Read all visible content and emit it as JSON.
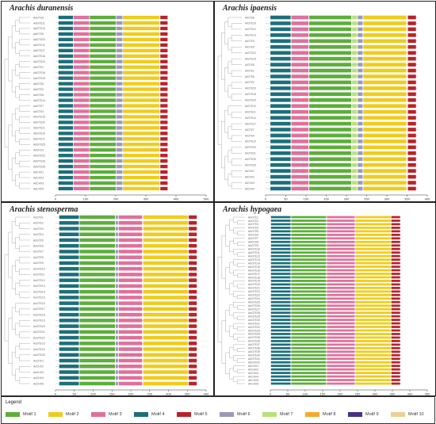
{
  "colors": {
    "motif1": "#5cae3a",
    "motif2": "#f0cc1a",
    "motif3": "#e0709a",
    "motif4": "#1b6f7a",
    "motif5": "#b8232a",
    "motif6": "#9a9ab8",
    "motif7": "#b6e27a",
    "motif8": "#f3aa2e",
    "motif9": "#4a3187",
    "motif10": "#efcf96"
  },
  "panels": [
    {
      "id": "duranensis",
      "title": "Arachis duranensis",
      "axis_ticks": [
        "0",
        "100",
        "200",
        "300",
        "400",
        "500"
      ],
      "axis_max": 500,
      "rows": 32,
      "row_labels": [
        "AdGTE9",
        "AdGTE11",
        "AdGTE13",
        "AdGTE5",
        "AdGTE24",
        "AdGTE12",
        "AdGTE27",
        "AdGTE16",
        "AdGTE23",
        "AdGTE1",
        "AdGTE18",
        "AdGTE19",
        "AdGTE6",
        "AdGTE2",
        "AdGTE8",
        "AdGTE14",
        "AdGTE7",
        "AdGTE3",
        "AdGTE15",
        "AdGTE20",
        "AdGTE21",
        "AdGTE10",
        "AdGTE17",
        "AdGTE25",
        "AdGTE4",
        "AdGTE22",
        "AdGTE26",
        "AdGTE28",
        "AdCHX1",
        "AdCHX2",
        "AdCHX3",
        "AdCHX4"
      ],
      "motifs": [
        {
          "motif": "Motif 4",
          "start": 10,
          "end": 58
        },
        {
          "motif": "Motif 3",
          "start": 60,
          "end": 112
        },
        {
          "motif": "Motif 1",
          "start": 114,
          "end": 200
        },
        {
          "motif": "Motif 6",
          "start": 202,
          "end": 222
        },
        {
          "motif": "Motif 2",
          "start": 224,
          "end": 345
        },
        {
          "motif": "Motif 5",
          "start": 348,
          "end": 372
        }
      ]
    },
    {
      "id": "ipaensis",
      "title": "Arachis ipaensis",
      "axis_ticks": [
        "0",
        "50",
        "100",
        "150",
        "200",
        "250",
        "300",
        "350",
        "400"
      ],
      "axis_max": 400,
      "rows": 30,
      "row_labels": [
        "AiGTE8",
        "AiGTE16",
        "AiGTE12",
        "AiGTE13",
        "AiGTE3",
        "AiGTE9",
        "AiGTE22",
        "AiGTE15",
        "AiGTE5",
        "AiGTE1",
        "AiGTE6",
        "AiGTE2",
        "AiGTE23",
        "AiGTE18",
        "AiGTE24",
        "AiGTE10",
        "AiGTE11",
        "AiGTE14",
        "AiGTE17",
        "AiGTE7",
        "AiGTE4",
        "AiGTE19",
        "AiGTE20",
        "AiGTE21",
        "AiGTE25",
        "AiGTE26",
        "AiCHX1",
        "AiCHX2",
        "AiCHX3",
        "AiCHX4"
      ],
      "motifs": [
        {
          "motif": "Motif 4",
          "start": 12,
          "end": 62
        },
        {
          "motif": "Motif 3",
          "start": 64,
          "end": 106
        },
        {
          "motif": "Motif 1",
          "start": 108,
          "end": 212
        },
        {
          "motif": "Motif 7",
          "start": 214,
          "end": 226
        },
        {
          "motif": "Motif 6",
          "start": 228,
          "end": 240
        },
        {
          "motif": "Motif 2",
          "start": 242,
          "end": 348
        },
        {
          "motif": "Motif 5",
          "start": 352,
          "end": 372
        }
      ]
    },
    {
      "id": "stenosperma",
      "title": "Arachis stenosperma",
      "axis_ticks": [
        "0",
        "50",
        "100",
        "150",
        "200",
        "250",
        "300",
        "350",
        "400"
      ],
      "axis_max": 400,
      "rows": 30,
      "row_labels": [
        "AsGTE1",
        "AsGTE2",
        "AsGTE3",
        "AsGTE4",
        "AsGTE5",
        "AsGTE6",
        "AsGTE7",
        "AsGTE8",
        "AsGTE9",
        "AsGTE10",
        "AsGTE11",
        "AsGTE12",
        "AsGTE13",
        "AsGTE14",
        "AsGTE15",
        "AsGTE16",
        "AsGTE17",
        "AsGTE18",
        "AsGTE19",
        "AsGTE20",
        "AsGTE21",
        "AsGTE22",
        "AsGTE23",
        "AsGTE24",
        "AsGTE25",
        "AsCHX1",
        "AsCHX2",
        "AsCHX3",
        "AsCHX4",
        "AsCHX5"
      ],
      "motifs": [
        {
          "motif": "Motif 4",
          "start": 10,
          "end": 62
        },
        {
          "motif": "Motif 1",
          "start": 64,
          "end": 158
        },
        {
          "motif": "Motif 6",
          "start": 160,
          "end": 166
        },
        {
          "motif": "Motif 3",
          "start": 168,
          "end": 230
        },
        {
          "motif": "Motif 2",
          "start": 233,
          "end": 352
        },
        {
          "motif": "Motif 5",
          "start": 354,
          "end": 375
        }
      ]
    },
    {
      "id": "hypogaea",
      "title": "Arachis hypogaea",
      "axis_ticks": [
        "0",
        "50",
        "100",
        "150",
        "200",
        "250",
        "300",
        "350",
        "400",
        "450"
      ],
      "axis_max": 450,
      "rows": 48,
      "row_labels": [
        "AhGTE1",
        "AhGTE2",
        "AhGTE3",
        "AhGTE4",
        "AhGTE5",
        "AhGTE6",
        "AhGTE7",
        "AhGTE8",
        "AhGTE9",
        "AhGTE10",
        "AhGTE11",
        "AhGTE12",
        "AhGTE13",
        "AhGTE14",
        "AhGTE15",
        "AhGTE16",
        "AhGTE17",
        "AhGTE18",
        "AhGTE19",
        "AhGTE20",
        "AhGTE21",
        "AhGTE22",
        "AhGTE23",
        "AhGTE24",
        "AhGTE25",
        "AhGTE26",
        "AhGTE27",
        "AhGTE28",
        "AhGTE29",
        "AhGTE30",
        "AhGTE31",
        "AhGTE32",
        "AhGTE33",
        "AhGTE34",
        "AhGTE35",
        "AhGTE36",
        "AhGTE37",
        "AhGTE38",
        "AhGTE39",
        "AhGTE40",
        "AhGTE41",
        "AhGTE42",
        "AhCHX1",
        "AhCHX2",
        "AhCHX3",
        "AhCHX4",
        "AhCHX5",
        "AhCHX6"
      ],
      "motifs": [
        {
          "motif": "Motif 4",
          "start": 2,
          "end": 58
        },
        {
          "motif": "Motif 1",
          "start": 60,
          "end": 160
        },
        {
          "motif": "Motif 3",
          "start": 162,
          "end": 242
        },
        {
          "motif": "Motif 2",
          "start": 244,
          "end": 345
        },
        {
          "motif": "Motif 5",
          "start": 347,
          "end": 372
        }
      ]
    }
  ],
  "legend": {
    "title": "Legend",
    "items": [
      {
        "label": "Motif 1",
        "color_key": "motif1"
      },
      {
        "label": "Motif 2",
        "color_key": "motif2"
      },
      {
        "label": "Motif 3",
        "color_key": "motif3"
      },
      {
        "label": "Motif 4",
        "color_key": "motif4"
      },
      {
        "label": "Motif 5",
        "color_key": "motif5"
      },
      {
        "label": "Motif 6",
        "color_key": "motif6"
      },
      {
        "label": "Motif 7",
        "color_key": "motif7"
      },
      {
        "label": "Motif 8",
        "color_key": "motif8"
      },
      {
        "label": "Motif 9",
        "color_key": "motif9"
      },
      {
        "label": "Motif 10",
        "color_key": "motif10"
      }
    ]
  }
}
